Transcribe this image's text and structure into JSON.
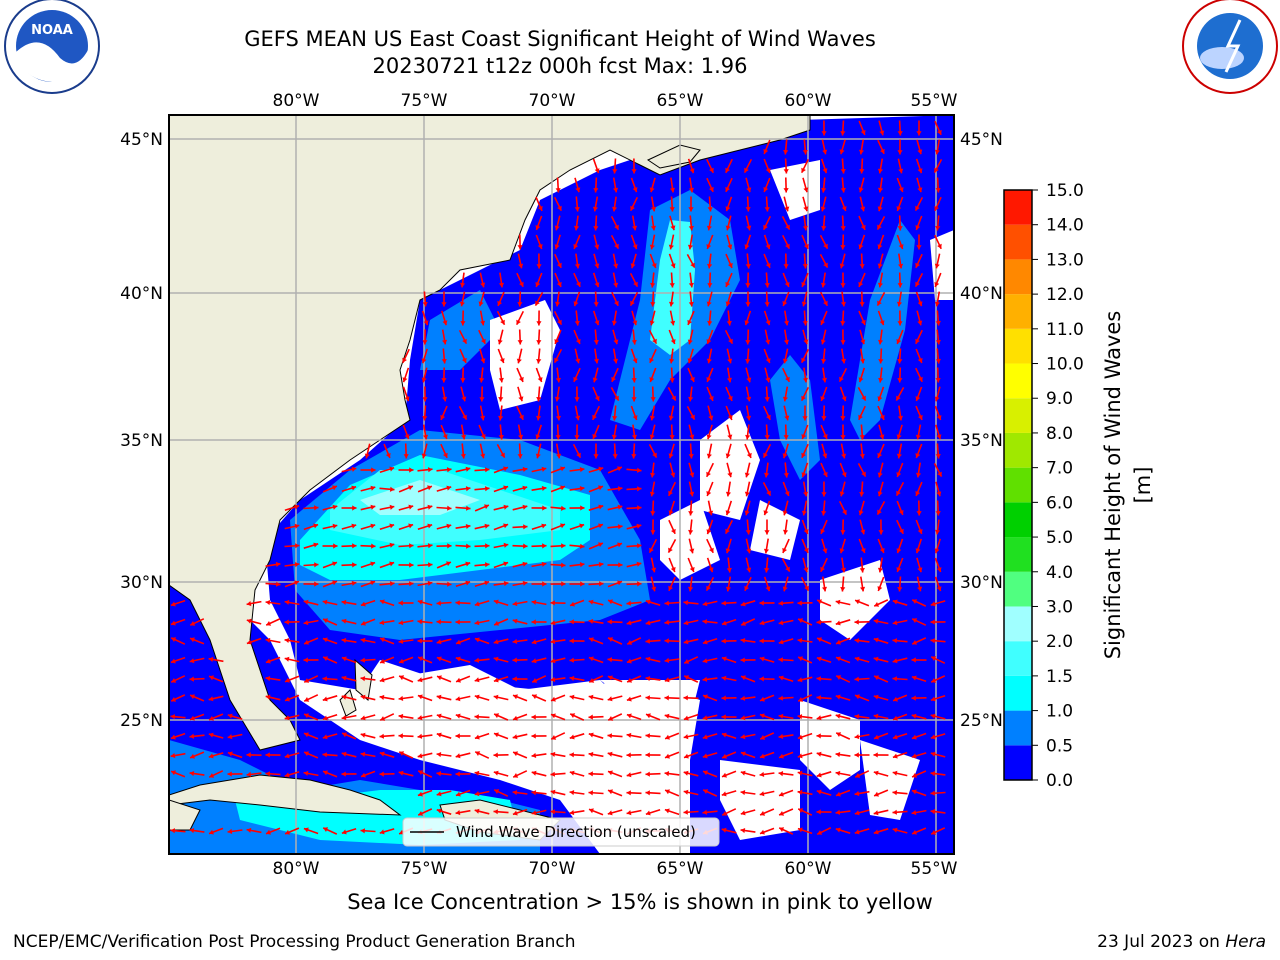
{
  "title_line1": "GEFS MEAN US East Coast Significant Height of Wind Waves",
  "title_line2": "20230721 t12z 000h fcst   Max: 1.96",
  "logos": {
    "left": "NOAA",
    "right": "NATIONAL WEATHER SERVICE"
  },
  "footer_note": "Sea Ice Concentration > 15% is shown in pink to yellow",
  "credit": "NCEP/EMC/Verification Post Processing Product Generation Branch",
  "date_prefix": "23 Jul 2023 on ",
  "date_machine": "Hera",
  "legend_label": "Wind Wave Direction (unscaled)",
  "colorbar_title": "Significant Height of Wind Waves [m]",
  "colorbar_ticks": [
    "0.0",
    "0.5",
    "1.0",
    "1.5",
    "2.0",
    "3.0",
    "4.0",
    "5.0",
    "6.0",
    "7.0",
    "8.0",
    "9.0",
    "10.0",
    "11.0",
    "12.0",
    "13.0",
    "14.0",
    "15.0"
  ],
  "colorbar_colors": [
    "#0000ff",
    "#0080ff",
    "#00ffff",
    "#40ffff",
    "#a0ffff",
    "#50ff80",
    "#20e020",
    "#00d000",
    "#60e000",
    "#a0e800",
    "#d8f000",
    "#ffff00",
    "#ffe000",
    "#ffb000",
    "#ff8800",
    "#ff5000",
    "#ff1800"
  ],
  "lon_labels": [
    "80°W",
    "75°W",
    "70°W",
    "65°W",
    "60°W",
    "55°W"
  ],
  "lat_labels": [
    "45°N",
    "40°N",
    "35°N",
    "30°N",
    "25°N"
  ],
  "colors": {
    "land": "#eeeedc",
    "arrow": "#ff0000",
    "grid": "#b0b0b0"
  },
  "chart_data": {
    "type": "heatmap",
    "title": "GEFS MEAN US East Coast Significant Height of Wind Waves",
    "subtitle": "20230721 t12z 000h fcst   Max: 1.96",
    "variable": "Significant Height of Wind Waves [m]",
    "max": 1.96,
    "lon_range": [
      -85,
      -54.4
    ],
    "lat_range": [
      20.4,
      46
    ],
    "color_levels": [
      0.0,
      0.5,
      1.0,
      1.5,
      2.0,
      3.0,
      4.0,
      5.0,
      6.0,
      7.0,
      8.0,
      9.0,
      10.0,
      11.0,
      12.0,
      13.0,
      14.0,
      15.0
    ],
    "grid": true,
    "legend_placement": "bottom-center"
  }
}
